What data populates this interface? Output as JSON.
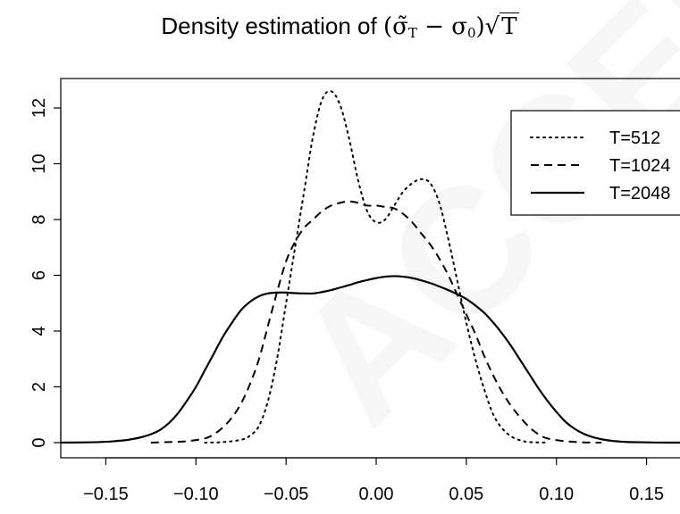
{
  "chart_data": {
    "type": "line",
    "title": {
      "prefix": "Density estimation of ",
      "math_open": "(",
      "sigma_tilde": "σ̃",
      "sub_T": "T",
      "minus": " − ",
      "sigma": "σ",
      "sub_0": "0",
      "math_close": ")",
      "sqrt_sign": "√",
      "sqrt_arg": "T"
    },
    "xlabel": "",
    "ylabel": "",
    "xlim": [
      -0.175,
      0.175
    ],
    "ylim": [
      0,
      12.6
    ],
    "x_ticks": [
      -0.15,
      -0.1,
      -0.05,
      0.0,
      0.05,
      0.1,
      0.15
    ],
    "x_tick_labels": [
      "−0.15",
      "−0.10",
      "−0.05",
      "0.00",
      "0.05",
      "0.10",
      "0.15"
    ],
    "y_ticks": [
      0,
      2,
      4,
      6,
      8,
      10,
      12
    ],
    "y_tick_labels": [
      "0",
      "2",
      "4",
      "6",
      "8",
      "10",
      "12"
    ],
    "grid": false,
    "legend_position": "top-right",
    "series": [
      {
        "name": "T=512",
        "line_style": "dotted",
        "color": "#000000",
        "x": [
          -0.095,
          -0.085,
          -0.075,
          -0.07,
          -0.065,
          -0.06,
          -0.055,
          -0.05,
          -0.045,
          -0.04,
          -0.035,
          -0.03,
          -0.025,
          -0.02,
          -0.015,
          -0.01,
          -0.005,
          0.0,
          0.005,
          0.01,
          0.015,
          0.02,
          0.025,
          0.03,
          0.035,
          0.04,
          0.045,
          0.05,
          0.055,
          0.06,
          0.065,
          0.07,
          0.075,
          0.08,
          0.085,
          0.095
        ],
        "y": [
          0.0,
          0.02,
          0.1,
          0.25,
          0.6,
          1.5,
          3.0,
          5.0,
          7.0,
          9.0,
          11.0,
          12.3,
          12.6,
          12.1,
          10.9,
          9.4,
          8.3,
          7.9,
          8.0,
          8.5,
          9.0,
          9.3,
          9.45,
          9.3,
          8.6,
          7.3,
          5.8,
          4.3,
          3.0,
          1.9,
          1.0,
          0.5,
          0.22,
          0.08,
          0.02,
          0.0
        ]
      },
      {
        "name": "T=1024",
        "line_style": "dashed",
        "color": "#000000",
        "x": [
          -0.125,
          -0.115,
          -0.105,
          -0.095,
          -0.09,
          -0.085,
          -0.08,
          -0.075,
          -0.07,
          -0.065,
          -0.06,
          -0.055,
          -0.05,
          -0.045,
          -0.04,
          -0.035,
          -0.03,
          -0.025,
          -0.02,
          -0.015,
          -0.01,
          -0.005,
          0.0,
          0.005,
          0.01,
          0.015,
          0.02,
          0.025,
          0.03,
          0.035,
          0.04,
          0.045,
          0.05,
          0.055,
          0.06,
          0.065,
          0.07,
          0.075,
          0.08,
          0.085,
          0.09,
          0.095,
          0.105,
          0.115,
          0.125
        ],
        "y": [
          0.0,
          0.02,
          0.05,
          0.15,
          0.3,
          0.55,
          0.9,
          1.4,
          2.1,
          3.0,
          4.2,
          5.4,
          6.5,
          7.2,
          7.7,
          8.0,
          8.3,
          8.5,
          8.6,
          8.65,
          8.6,
          8.5,
          8.5,
          8.45,
          8.4,
          8.2,
          7.9,
          7.5,
          7.1,
          6.6,
          6.0,
          5.3,
          4.6,
          3.9,
          3.1,
          2.4,
          1.8,
          1.3,
          0.9,
          0.55,
          0.3,
          0.15,
          0.05,
          0.01,
          0.0
        ]
      },
      {
        "name": "T=2048",
        "line_style": "solid",
        "color": "#000000",
        "x": [
          -0.175,
          -0.16,
          -0.15,
          -0.14,
          -0.135,
          -0.13,
          -0.125,
          -0.12,
          -0.115,
          -0.11,
          -0.105,
          -0.1,
          -0.095,
          -0.09,
          -0.085,
          -0.08,
          -0.075,
          -0.07,
          -0.065,
          -0.06,
          -0.055,
          -0.05,
          -0.045,
          -0.04,
          -0.035,
          -0.03,
          -0.025,
          -0.02,
          -0.015,
          -0.01,
          -0.005,
          0.0,
          0.005,
          0.01,
          0.015,
          0.02,
          0.025,
          0.03,
          0.035,
          0.04,
          0.045,
          0.05,
          0.055,
          0.06,
          0.065,
          0.07,
          0.075,
          0.08,
          0.085,
          0.09,
          0.095,
          0.1,
          0.105,
          0.11,
          0.115,
          0.12,
          0.125,
          0.13,
          0.135,
          0.14,
          0.15,
          0.16,
          0.175
        ],
        "y": [
          0.0,
          0.01,
          0.03,
          0.08,
          0.13,
          0.2,
          0.3,
          0.45,
          0.7,
          1.05,
          1.5,
          2.0,
          2.6,
          3.2,
          3.8,
          4.3,
          4.75,
          5.05,
          5.25,
          5.35,
          5.38,
          5.38,
          5.36,
          5.35,
          5.35,
          5.4,
          5.47,
          5.56,
          5.65,
          5.75,
          5.83,
          5.9,
          5.95,
          5.97,
          5.95,
          5.9,
          5.82,
          5.72,
          5.6,
          5.47,
          5.32,
          5.15,
          4.92,
          4.65,
          4.3,
          3.9,
          3.45,
          2.95,
          2.45,
          1.95,
          1.5,
          1.1,
          0.75,
          0.5,
          0.32,
          0.2,
          0.12,
          0.07,
          0.04,
          0.02,
          0.01,
          0.0,
          0.0
        ]
      }
    ]
  },
  "watermark_text": "ACCEPTED MANUSCRIPT"
}
